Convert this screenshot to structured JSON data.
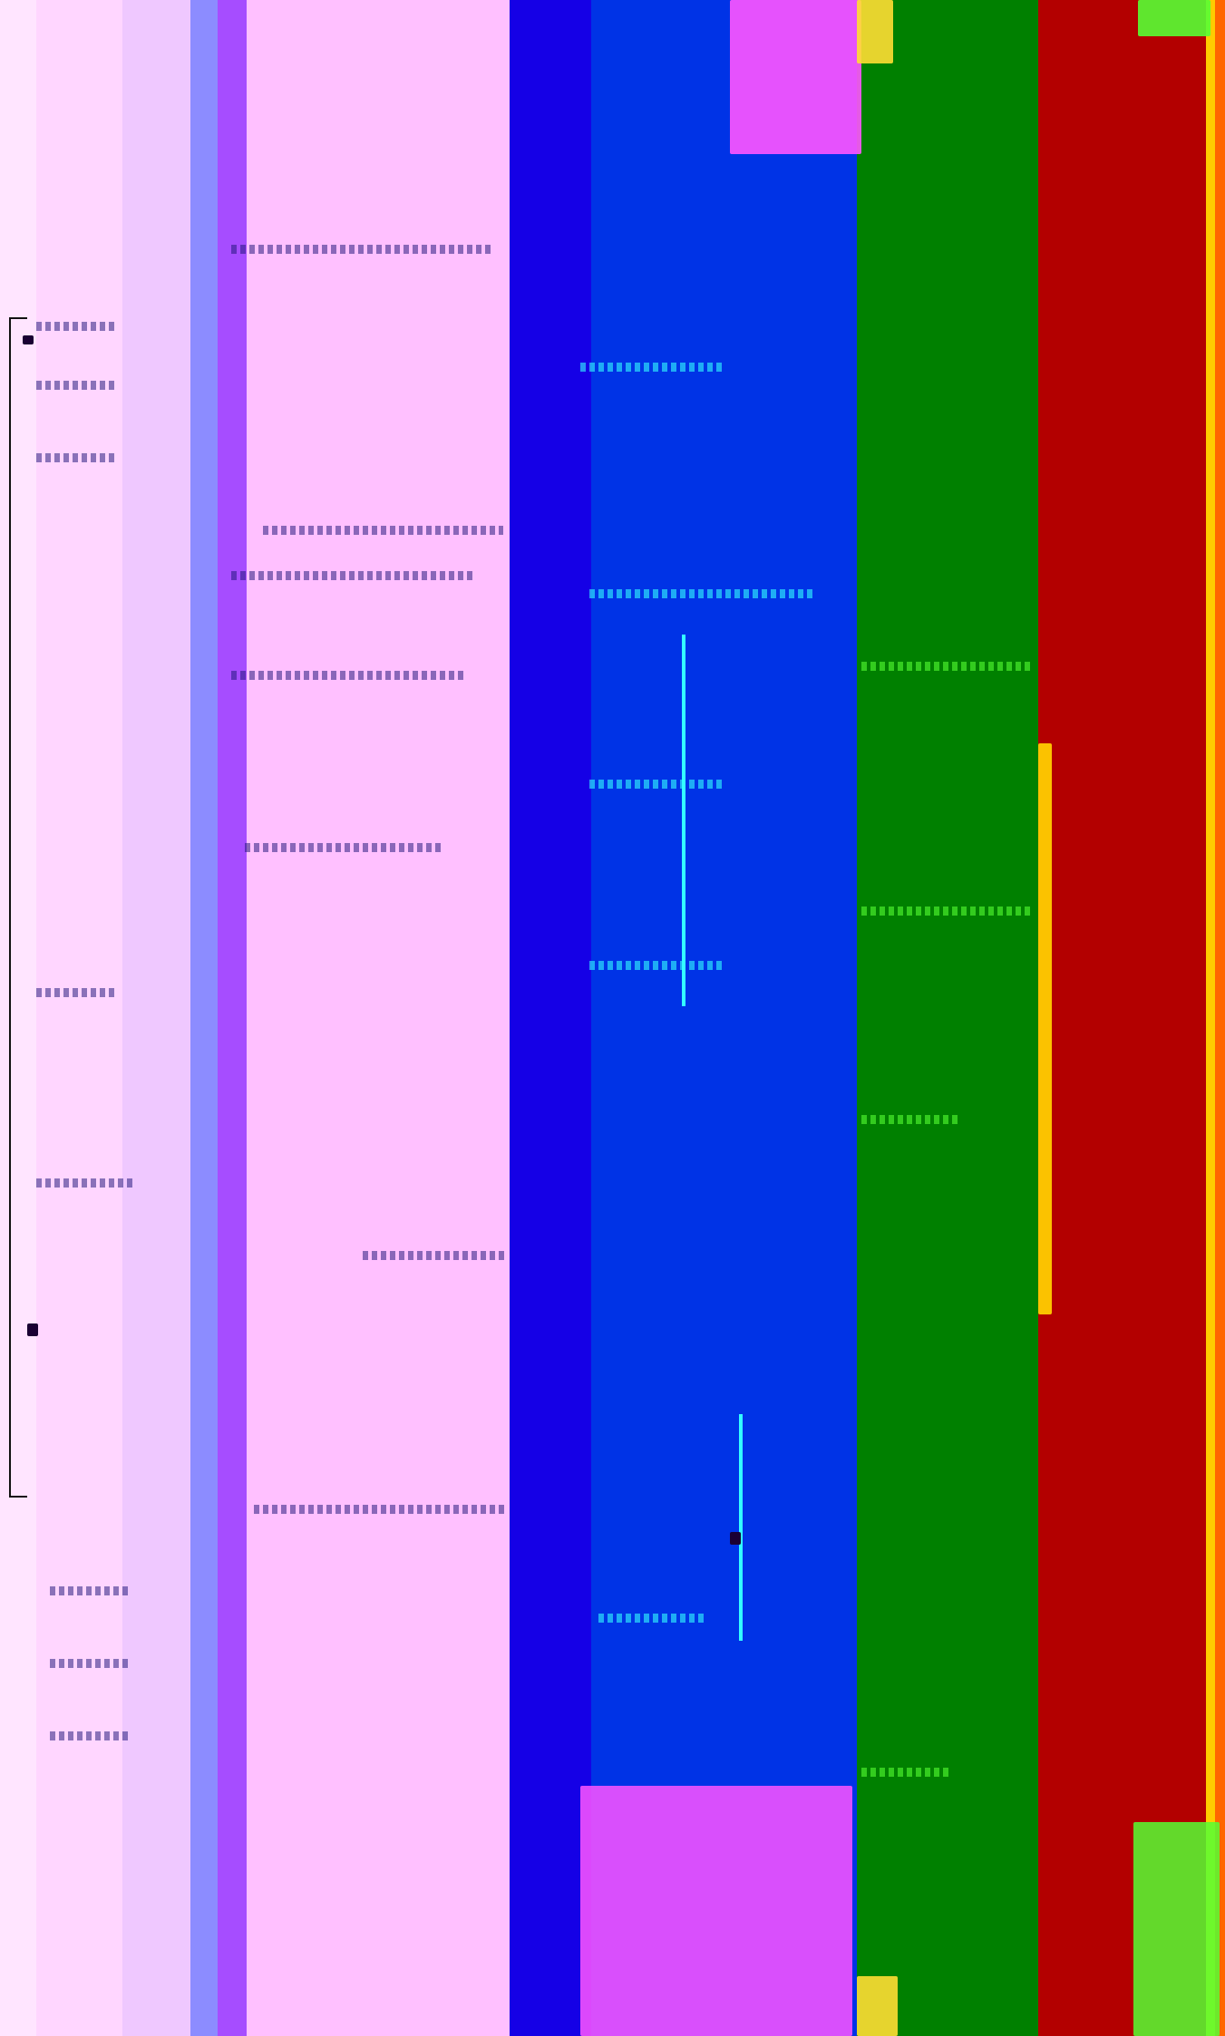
{
  "image": {
    "bands": [
      {
        "name": "band-lilac-1",
        "color": "#ffe5ff"
      },
      {
        "name": "band-lilac-2",
        "color": "#ffd6ff"
      },
      {
        "name": "band-lilac-3",
        "color": "#efc8ff"
      },
      {
        "name": "band-periwinkle",
        "color": "#8c8cff"
      },
      {
        "name": "band-purple",
        "color": "#a64dff"
      },
      {
        "name": "band-pink",
        "color": "#ffc0ff"
      },
      {
        "name": "band-indigo",
        "color": "#1500e6"
      },
      {
        "name": "band-blue",
        "color": "#0033e6"
      },
      {
        "name": "band-green",
        "color": "#008000"
      },
      {
        "name": "band-red",
        "color": "#b30000"
      },
      {
        "name": "band-yellow",
        "color": "#ffcc00"
      },
      {
        "name": "band-orange",
        "color": "#ff6600"
      }
    ],
    "spot_colors": {
      "magenta": "#ff55ff",
      "cyan": "#33ffff",
      "lime": "#55ff33",
      "yellow": "#ffdd33",
      "dark": "#1a0033"
    }
  }
}
